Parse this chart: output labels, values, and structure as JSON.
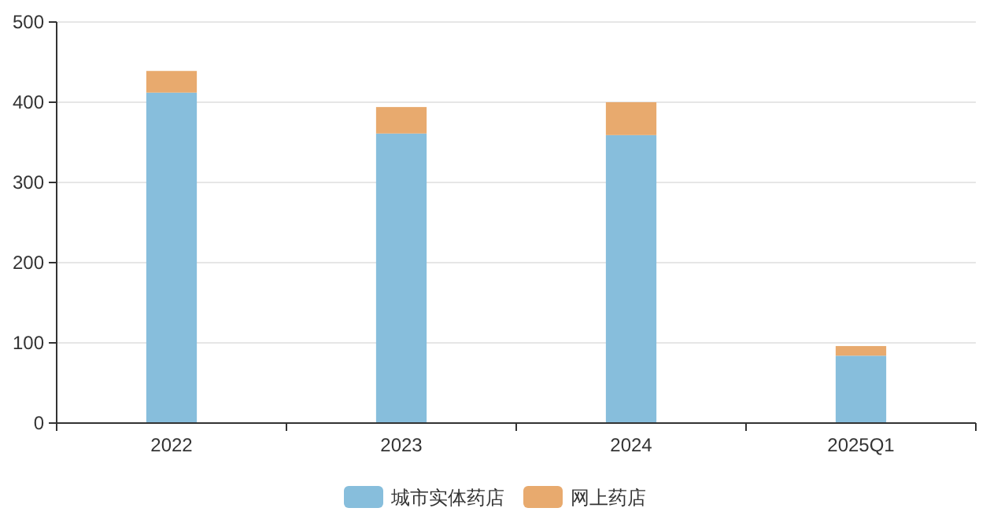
{
  "chart_data": {
    "type": "bar",
    "stacked": true,
    "categories": [
      "2022",
      "2023",
      "2024",
      "2025Q1"
    ],
    "series": [
      {
        "name": "城市实体药店",
        "color": "#87bedc",
        "values": [
          412,
          361,
          359,
          84
        ]
      },
      {
        "name": "网上药店",
        "color": "#e8aa6e",
        "values": [
          27,
          33,
          41,
          12
        ]
      }
    ],
    "ylim": [
      0,
      500
    ],
    "yticks": [
      0,
      100,
      200,
      300,
      400,
      500
    ],
    "grid": "y",
    "legend": "bottom"
  }
}
